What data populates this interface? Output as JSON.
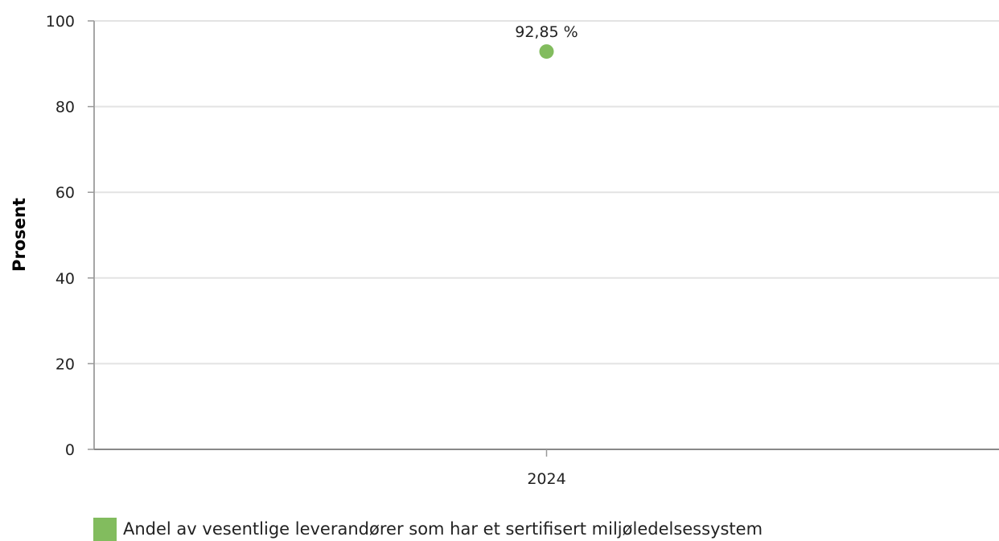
{
  "chart_data": {
    "type": "scatter",
    "ylabel": "Prosent",
    "xlabel": "",
    "ylim": [
      0,
      100
    ],
    "y_ticks": [
      0,
      20,
      40,
      60,
      80,
      100
    ],
    "categories": [
      "2024"
    ],
    "grid": true,
    "legend_position": "bottom-left",
    "series": [
      {
        "name": "Andel av vesentlige leverandører som har et sertifisert miljøledelsessystem",
        "color": "#82bc5e",
        "points": [
          {
            "x": "2024",
            "y": 92.85,
            "label": "92,85 %"
          }
        ]
      }
    ]
  }
}
